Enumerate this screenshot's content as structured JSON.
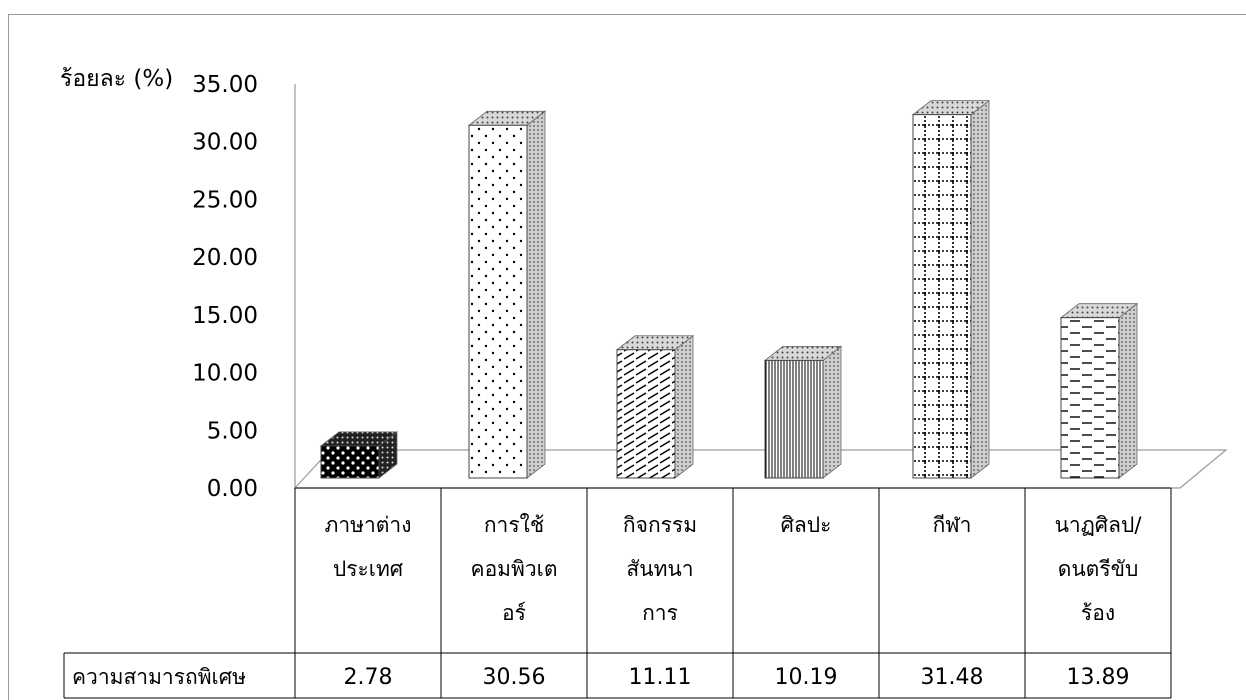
{
  "chart_data": {
    "type": "bar",
    "ylabel": "ร้อยละ (%)",
    "ylim": [
      0,
      35
    ],
    "yticks": [
      "0.00",
      "5.00",
      "10.00",
      "15.00",
      "20.00",
      "25.00",
      "30.00",
      "35.00"
    ],
    "categories": [
      [
        "ภาษาต่าง",
        "ประเทศ"
      ],
      [
        "การใช้",
        "คอมพิวเต",
        "อร์"
      ],
      [
        "กิจกรรม",
        "สันทนา",
        "การ"
      ],
      [
        "ศิลปะ"
      ],
      [
        "กีฬา"
      ],
      [
        "นาฏศิลป/",
        "ดนตรีขับ",
        "ร้อง"
      ]
    ],
    "series": [
      {
        "name": "ความสามารถพิเศษ",
        "values": [
          2.78,
          30.56,
          11.11,
          10.19,
          31.48,
          13.89
        ],
        "labels": [
          "2.78",
          "30.56",
          "11.11",
          "10.19",
          "31.48",
          "13.89"
        ]
      }
    ],
    "patterns": [
      "dots-dark",
      "dots-sparse",
      "diagonal-dash",
      "vertical-lines",
      "grid-dotted",
      "horizontal-dash"
    ],
    "grid": false,
    "legend": "table-bottom"
  }
}
